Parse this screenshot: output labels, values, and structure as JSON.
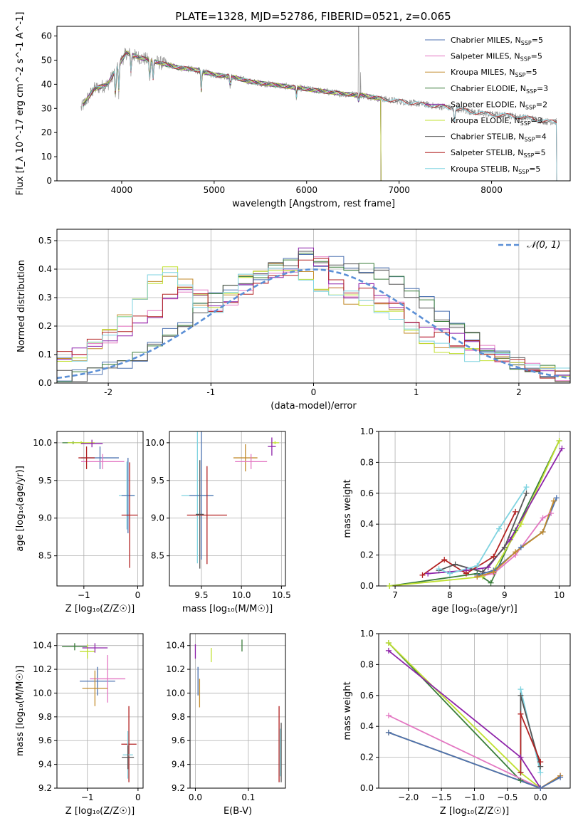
{
  "figure": {
    "title": "PLATE=1328, MJD=52786, FIBERID=0521, z=0.065"
  },
  "chart_data": [
    {
      "id": "spectrum",
      "type": "line",
      "title": "PLATE=1328, MJD=52786, FIBERID=0521, z=0.065",
      "xlabel": "wavelength [Angstrom, rest frame]",
      "ylabel": "Flux [f_λ 10^-17 erg cm^-2 s^-1 A^-1]",
      "xlim": [
        3300,
        8850
      ],
      "ylim": [
        0,
        64
      ],
      "xticks": [
        4000,
        5000,
        6000,
        7000,
        8000
      ],
      "yticks": [
        0,
        10,
        20,
        30,
        40,
        50,
        60
      ],
      "grid": false,
      "legend_position": "upper right",
      "data_continuum": [
        [
          3560,
          30
        ],
        [
          3700,
          38
        ],
        [
          3850,
          40
        ],
        [
          3950,
          47
        ],
        [
          4050,
          53
        ],
        [
          4200,
          51
        ],
        [
          4400,
          49
        ],
        [
          4600,
          47
        ],
        [
          4800,
          46
        ],
        [
          5000,
          44
        ],
        [
          5200,
          43
        ],
        [
          5400,
          41
        ],
        [
          5600,
          40
        ],
        [
          5800,
          39
        ],
        [
          6000,
          38
        ],
        [
          6200,
          37
        ],
        [
          6400,
          36
        ],
        [
          6600,
          35.5
        ],
        [
          6800,
          34
        ],
        [
          7000,
          33
        ],
        [
          7200,
          32
        ],
        [
          7400,
          31
        ],
        [
          7600,
          30
        ],
        [
          7800,
          28.5
        ],
        [
          8000,
          27.5
        ],
        [
          8200,
          27
        ],
        [
          8400,
          26
        ],
        [
          8600,
          24.5
        ]
      ],
      "series": [
        {
          "name": "Chabrier MILES",
          "nssp": "5",
          "color": "#4c72b0",
          "x_end": 6800
        },
        {
          "name": "Salpeter MILES",
          "nssp": "5",
          "color": "#e377c2",
          "x_end": 6800
        },
        {
          "name": "Kroupa MILES",
          "nssp": "5",
          "color": "#c28a2a",
          "x_end": 6800
        },
        {
          "name": "Chabrier ELODIE",
          "nssp": "3",
          "color": "#3a7d3a",
          "x_end": 6800
        },
        {
          "name": "Salpeter ELODIE",
          "nssp": "2",
          "color": "#8e24aa",
          "x_end": 6800
        },
        {
          "name": "Kroupa ELODIE",
          "nssp": "3",
          "color": "#c0e030",
          "x_end": 6800
        },
        {
          "name": "Chabrier STELIB",
          "nssp": "4",
          "color": "#555555",
          "x_end": 8700
        },
        {
          "name": "Salpeter STELIB",
          "nssp": "5",
          "color": "#b22222",
          "x_end": 8700
        },
        {
          "name": "Kroupa STELIB",
          "nssp": "5",
          "color": "#7fd3e0",
          "x_end": 8700
        }
      ]
    },
    {
      "id": "residuals",
      "type": "line",
      "xlabel": "(data-model)/error",
      "ylabel": "Normed distribution",
      "xlim": [
        -2.5,
        2.5
      ],
      "ylim": [
        0,
        0.54
      ],
      "xticks": [
        -2,
        -1,
        0,
        1,
        2
      ],
      "yticks": [
        0.0,
        0.1,
        0.2,
        0.3,
        0.4,
        0.5
      ],
      "grid": true,
      "legend_position": "upper right",
      "reference_curve": {
        "name": "𝒩(0, 1)",
        "color": "#5b8fd6",
        "style": "dashed"
      },
      "histogram_profiles": [
        [
          0.02,
          0.03,
          0.04,
          0.06,
          0.07,
          0.1,
          0.13,
          0.17,
          0.21,
          0.26,
          0.3,
          0.33,
          0.36,
          0.38,
          0.4,
          0.42,
          0.44,
          0.43,
          0.42,
          0.41,
          0.4,
          0.38,
          0.35,
          0.32,
          0.28,
          0.24,
          0.2,
          0.16,
          0.12,
          0.09,
          0.07,
          0.05,
          0.04,
          0.03
        ],
        [
          0.09,
          0.11,
          0.13,
          0.16,
          0.19,
          0.22,
          0.25,
          0.3,
          0.34,
          0.32,
          0.26,
          0.27,
          0.33,
          0.37,
          0.39,
          0.4,
          0.45,
          0.42,
          0.35,
          0.32,
          0.34,
          0.3,
          0.26,
          0.22,
          0.18,
          0.17,
          0.15,
          0.13,
          0.11,
          0.09,
          0.07,
          0.05,
          0.04,
          0.03
        ],
        [
          0.07,
          0.1,
          0.14,
          0.18,
          0.23,
          0.3,
          0.36,
          0.39,
          0.34,
          0.29,
          0.25,
          0.3,
          0.36,
          0.4,
          0.42,
          0.42,
          0.38,
          0.34,
          0.32,
          0.3,
          0.28,
          0.27,
          0.24,
          0.18,
          0.14,
          0.12,
          0.11,
          0.1,
          0.09,
          0.08,
          0.07,
          0.05,
          0.04,
          0.03
        ]
      ]
    },
    {
      "id": "age_vs_metal",
      "type": "scatter",
      "xlabel": "Z [log₁₀(Z/Z☉)]",
      "ylabel": "age [log₁₀(age/yr)]",
      "xlim": [
        -1.5,
        0.1
      ],
      "ylim": [
        8.1,
        10.15
      ],
      "xticks": [
        -1,
        0
      ],
      "yticks": [
        8.5,
        9.0,
        9.5,
        10.0
      ],
      "grid": true,
      "points": [
        {
          "x": -1.2,
          "y": 10.0,
          "xerr": 0.2,
          "yerr": 0.02,
          "color": "#3a7d3a"
        },
        {
          "x": -1.05,
          "y": 10.0,
          "xerr": 0.25,
          "yerr": 0.02,
          "color": "#c0e030"
        },
        {
          "x": -0.85,
          "y": 9.99,
          "xerr": 0.2,
          "yerr": 0.05,
          "color": "#8e24aa"
        },
        {
          "x": -0.7,
          "y": 9.8,
          "xerr": 0.35,
          "yerr": 0.15,
          "color": "#4c72b0"
        },
        {
          "x": -0.65,
          "y": 9.75,
          "xerr": 0.4,
          "yerr": 0.1,
          "color": "#e377c2"
        },
        {
          "x": -0.95,
          "y": 9.8,
          "xerr": 0.15,
          "yerr": 0.15,
          "color": "#b22222"
        },
        {
          "x": -0.2,
          "y": 9.3,
          "xerr": 0.15,
          "yerr": 0.45,
          "color": "#7fd3e0"
        },
        {
          "x": -0.18,
          "y": 9.3,
          "xerr": 0.12,
          "yerr": 0.5,
          "color": "#4c72b0"
        },
        {
          "x": -0.15,
          "y": 9.04,
          "xerr": 0.15,
          "yerr": 0.7,
          "color": "#b22222"
        }
      ]
    },
    {
      "id": "age_vs_mass",
      "type": "scatter",
      "xlabel": "mass [log₁₀(M/M☉)]",
      "xlim": [
        9.1,
        10.55
      ],
      "ylim": [
        8.1,
        10.15
      ],
      "xticks": [
        9.5,
        10.0,
        10.5
      ],
      "yticks": [
        8.5,
        9.0,
        9.5,
        10.0
      ],
      "grid": true,
      "points": [
        {
          "x": 10.42,
          "y": 10.0,
          "xerr": 0.05,
          "yerr": 0.02,
          "color": "#c0e030"
        },
        {
          "x": 10.38,
          "y": 9.95,
          "xerr": 0.05,
          "yerr": 0.12,
          "color": "#8e24aa"
        },
        {
          "x": 10.05,
          "y": 9.8,
          "xerr": 0.15,
          "yerr": 0.18,
          "color": "#c28a2a"
        },
        {
          "x": 10.12,
          "y": 9.75,
          "xerr": 0.2,
          "yerr": 0.1,
          "color": "#e377c2"
        },
        {
          "x": 9.45,
          "y": 9.3,
          "xerr": 0.2,
          "yerr": 0.9,
          "color": "#7fd3e0"
        },
        {
          "x": 9.5,
          "y": 9.3,
          "xerr": 0.15,
          "yerr": 0.85,
          "color": "#4c72b0"
        },
        {
          "x": 9.57,
          "y": 9.04,
          "xerr": 0.25,
          "yerr": 0.65,
          "color": "#b22222"
        },
        {
          "x": 9.48,
          "y": 9.05,
          "xerr": 0.05,
          "yerr": 0.72,
          "color": "#555555"
        }
      ]
    },
    {
      "id": "mass_weight_vs_age",
      "type": "line",
      "xlabel": "age [log₁₀(age/yr)]",
      "ylabel": "mass weight",
      "xlim": [
        6.7,
        10.2
      ],
      "ylim": [
        0,
        1.0
      ],
      "xticks": [
        7,
        8,
        9,
        10
      ],
      "yticks": [
        0.0,
        0.2,
        0.4,
        0.6,
        0.8,
        1.0
      ],
      "grid": true,
      "series": [
        {
          "color": "#3a7d3a",
          "x": [
            6.9,
            8.5,
            8.75,
            9.2,
            10.0
          ],
          "y": [
            0.0,
            0.08,
            0.02,
            0.36,
            0.94
          ]
        },
        {
          "color": "#c0e030",
          "x": [
            6.9,
            8.6,
            8.8,
            9.3,
            10.0
          ],
          "y": [
            0.0,
            0.06,
            0.1,
            0.4,
            0.94
          ]
        },
        {
          "color": "#8e24aa",
          "x": [
            7.6,
            8.3,
            8.7,
            9.1,
            10.05
          ],
          "y": [
            0.08,
            0.1,
            0.12,
            0.3,
            0.89
          ]
        },
        {
          "color": "#b22222",
          "x": [
            7.5,
            7.9,
            8.3,
            8.8,
            9.2
          ],
          "y": [
            0.07,
            0.17,
            0.08,
            0.19,
            0.48
          ]
        },
        {
          "color": "#555555",
          "x": [
            7.8,
            8.1,
            8.6,
            9.0,
            9.4
          ],
          "y": [
            0.1,
            0.14,
            0.09,
            0.25,
            0.6
          ]
        },
        {
          "color": "#7fd3e0",
          "x": [
            7.8,
            8.0,
            8.5,
            8.9,
            9.4
          ],
          "y": [
            0.11,
            0.08,
            0.13,
            0.37,
            0.64
          ]
        },
        {
          "color": "#e377c2",
          "x": [
            8.5,
            8.8,
            9.2,
            9.7,
            9.85
          ],
          "y": [
            0.06,
            0.08,
            0.2,
            0.44,
            0.47
          ]
        },
        {
          "color": "#4c72b0",
          "x": [
            8.5,
            8.8,
            9.3,
            9.7,
            9.95
          ],
          "y": [
            0.07,
            0.1,
            0.25,
            0.35,
            0.57
          ]
        },
        {
          "color": "#c28a2a",
          "x": [
            8.5,
            8.8,
            9.2,
            9.7,
            9.9
          ],
          "y": [
            0.06,
            0.09,
            0.22,
            0.35,
            0.55
          ]
        }
      ]
    },
    {
      "id": "mass_vs_metal",
      "type": "scatter",
      "xlabel": "Z [log₁₀(Z/Z☉)]",
      "ylabel": "mass [log₁₀(M/M☉)]",
      "xlim": [
        -1.6,
        0.1
      ],
      "ylim": [
        9.2,
        10.5
      ],
      "xticks": [
        -1,
        0
      ],
      "yticks": [
        9.2,
        9.4,
        9.6,
        9.8,
        10.0,
        10.2,
        10.4
      ],
      "grid": true,
      "points": [
        {
          "x": -1.25,
          "y": 10.39,
          "xerr": 0.25,
          "yerr": 0.03,
          "color": "#3a7d3a"
        },
        {
          "x": -1.0,
          "y": 10.35,
          "xerr": 0.15,
          "yerr": 0.06,
          "color": "#c0e030"
        },
        {
          "x": -0.85,
          "y": 10.38,
          "xerr": 0.25,
          "yerr": 0.04,
          "color": "#8e24aa"
        },
        {
          "x": -0.8,
          "y": 10.1,
          "xerr": 0.35,
          "yerr": 0.12,
          "color": "#4c72b0"
        },
        {
          "x": -0.6,
          "y": 10.12,
          "xerr": 0.35,
          "yerr": 0.2,
          "color": "#e377c2"
        },
        {
          "x": -0.85,
          "y": 10.04,
          "xerr": 0.25,
          "yerr": 0.15,
          "color": "#c28a2a"
        },
        {
          "x": -0.18,
          "y": 9.57,
          "xerr": 0.15,
          "yerr": 0.32,
          "color": "#b22222"
        },
        {
          "x": -0.2,
          "y": 9.48,
          "xerr": 0.1,
          "yerr": 0.2,
          "color": "#7fd3e0"
        },
        {
          "x": -0.2,
          "y": 9.46,
          "xerr": 0.12,
          "yerr": 0.1,
          "color": "#555555"
        }
      ]
    },
    {
      "id": "mass_vs_ebv",
      "type": "scatter",
      "xlabel": "E(B-V)",
      "xlim": [
        -0.01,
        0.17
      ],
      "ylim": [
        9.2,
        10.5
      ],
      "xticks": [
        0.0,
        0.1
      ],
      "yticks": [
        9.2,
        9.4,
        9.6,
        9.8,
        10.0,
        10.2,
        10.4
      ],
      "grid": true,
      "points": [
        {
          "x": 0.0,
          "y": 10.35,
          "xerr": 0,
          "yerr": 0.06,
          "color": "#8e24aa"
        },
        {
          "x": 0.005,
          "y": 10.1,
          "xerr": 0,
          "yerr": 0.12,
          "color": "#4c72b0"
        },
        {
          "x": 0.008,
          "y": 10.0,
          "xerr": 0,
          "yerr": 0.12,
          "color": "#c28a2a"
        },
        {
          "x": 0.03,
          "y": 10.32,
          "xerr": 0,
          "yerr": 0.06,
          "color": "#c0e030"
        },
        {
          "x": 0.088,
          "y": 10.4,
          "xerr": 0,
          "yerr": 0.05,
          "color": "#3a7d3a"
        },
        {
          "x": 0.158,
          "y": 9.57,
          "xerr": 0,
          "yerr": 0.32,
          "color": "#b22222"
        },
        {
          "x": 0.16,
          "y": 9.5,
          "xerr": 0,
          "yerr": 0.2,
          "color": "#7fd3e0"
        },
        {
          "x": 0.162,
          "y": 9.5,
          "xerr": 0,
          "yerr": 0.25,
          "color": "#555555"
        }
      ]
    },
    {
      "id": "mass_weight_vs_metal",
      "type": "line",
      "xlabel": "Z [log₁₀(Z/Z☉)]",
      "ylabel": "mass weight",
      "xlim": [
        -2.45,
        0.45
      ],
      "ylim": [
        0,
        1.0
      ],
      "xticks": [
        -2.0,
        -1.5,
        -1.0,
        -0.5,
        0.0
      ],
      "yticks": [
        0.0,
        0.2,
        0.4,
        0.6,
        0.8,
        1.0
      ],
      "grid": true,
      "series": [
        {
          "color": "#3a7d3a",
          "x": [
            -2.3,
            -0.3,
            0.0
          ],
          "y": [
            0.94,
            0.05,
            0.0
          ]
        },
        {
          "color": "#c0e030",
          "x": [
            -2.3,
            -0.3,
            0.0
          ],
          "y": [
            0.94,
            0.1,
            0.0
          ]
        },
        {
          "color": "#8e24aa",
          "x": [
            -2.3,
            -0.3,
            0.0
          ],
          "y": [
            0.89,
            0.2,
            0.0
          ]
        },
        {
          "color": "#e377c2",
          "x": [
            -2.3,
            0.0,
            0.3
          ],
          "y": [
            0.47,
            0.0,
            0.08
          ]
        },
        {
          "color": "#c28a2a",
          "x": [
            -2.3,
            0.0,
            0.3
          ],
          "y": [
            0.36,
            0.0,
            0.08
          ]
        },
        {
          "color": "#4c72b0",
          "x": [
            -2.3,
            0.0,
            0.3
          ],
          "y": [
            0.36,
            0.0,
            0.07
          ]
        },
        {
          "color": "#7fd3e0",
          "x": [
            -0.3,
            -0.3,
            0.0
          ],
          "y": [
            0.1,
            0.64,
            0.1
          ]
        },
        {
          "color": "#555555",
          "x": [
            -0.3,
            -0.3,
            0.0
          ],
          "y": [
            0.1,
            0.6,
            0.14
          ]
        },
        {
          "color": "#b22222",
          "x": [
            -0.3,
            -0.3,
            0.0
          ],
          "y": [
            0.1,
            0.48,
            0.17
          ]
        }
      ]
    }
  ]
}
